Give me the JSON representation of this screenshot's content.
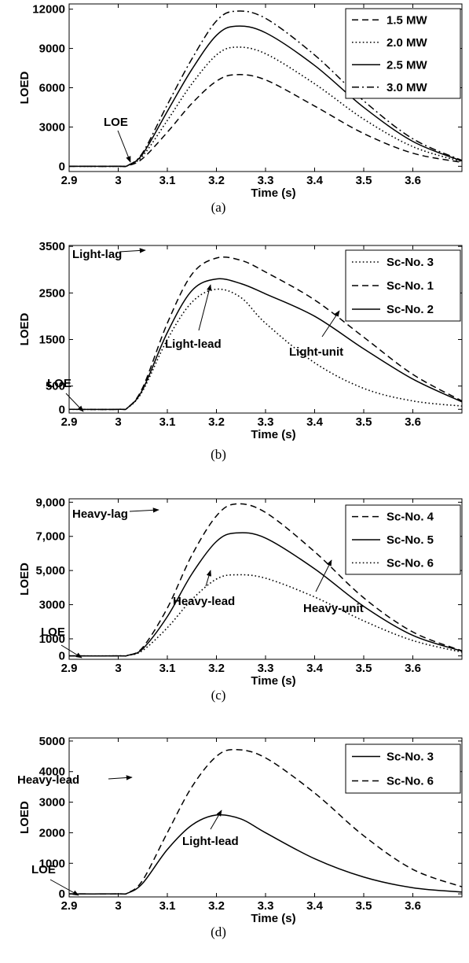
{
  "chart_data": [
    {
      "type": "line",
      "caption": "(a)",
      "xlabel": "Time (s)",
      "ylabel": "LOED",
      "xlim": [
        2.9,
        3.7
      ],
      "ylim": [
        -400,
        12400
      ],
      "xticks": [
        2.9,
        3.0,
        3.1,
        3.2,
        3.3,
        3.4,
        3.5,
        3.6
      ],
      "xtick_labels": [
        "2.9",
        "3",
        "3.1",
        "3.2",
        "3.3",
        "3.4",
        "3.5",
        "3.6"
      ],
      "yticks": [
        0,
        3000,
        6000,
        9000,
        12000
      ],
      "ytick_labels": [
        "0",
        "3000",
        "6000",
        "9000",
        "12000"
      ],
      "legend_position": "top-right",
      "grid": false,
      "series": [
        {
          "name": "1.5 MW",
          "style": "dashed",
          "points": [
            [
              2.9,
              0
            ],
            [
              3.0,
              0
            ],
            [
              3.02,
              50
            ],
            [
              3.05,
              600
            ],
            [
              3.1,
              2600
            ],
            [
              3.15,
              4800
            ],
            [
              3.2,
              6500
            ],
            [
              3.24,
              7000
            ],
            [
              3.3,
              6600
            ],
            [
              3.4,
              4600
            ],
            [
              3.5,
              2500
            ],
            [
              3.6,
              1000
            ],
            [
              3.7,
              300
            ]
          ]
        },
        {
          "name": "2.0 MW",
          "style": "dotted",
          "points": [
            [
              2.9,
              0
            ],
            [
              3.0,
              0
            ],
            [
              3.02,
              60
            ],
            [
              3.05,
              800
            ],
            [
              3.1,
              3500
            ],
            [
              3.15,
              6300
            ],
            [
              3.2,
              8500
            ],
            [
              3.24,
              9100
            ],
            [
              3.3,
              8600
            ],
            [
              3.4,
              6300
            ],
            [
              3.5,
              3600
            ],
            [
              3.6,
              1500
            ],
            [
              3.7,
              350
            ]
          ]
        },
        {
          "name": "2.5 MW",
          "style": "solid",
          "points": [
            [
              2.9,
              0
            ],
            [
              3.0,
              0
            ],
            [
              3.02,
              70
            ],
            [
              3.05,
              950
            ],
            [
              3.1,
              4200
            ],
            [
              3.15,
              7400
            ],
            [
              3.2,
              10000
            ],
            [
              3.24,
              10700
            ],
            [
              3.3,
              10200
            ],
            [
              3.4,
              7700
            ],
            [
              3.5,
              4500
            ],
            [
              3.6,
              1900
            ],
            [
              3.7,
              400
            ]
          ]
        },
        {
          "name": "3.0 MW",
          "style": "dashdot",
          "points": [
            [
              2.9,
              0
            ],
            [
              3.0,
              0
            ],
            [
              3.02,
              80
            ],
            [
              3.05,
              1050
            ],
            [
              3.1,
              4700
            ],
            [
              3.15,
              8200
            ],
            [
              3.2,
              11100
            ],
            [
              3.24,
              11850
            ],
            [
              3.3,
              11300
            ],
            [
              3.4,
              8500
            ],
            [
              3.5,
              5000
            ],
            [
              3.6,
              2100
            ],
            [
              3.7,
              450
            ]
          ]
        }
      ],
      "annotations": [
        {
          "text": "LOE",
          "x": 3.0,
          "y": 0
        }
      ]
    },
    {
      "type": "line",
      "caption": "(b)",
      "xlabel": "Time (s)",
      "ylabel": "LOED",
      "xlim": [
        2.9,
        3.7
      ],
      "ylim": [
        -80,
        3520
      ],
      "xticks": [
        2.9,
        3.0,
        3.1,
        3.2,
        3.3,
        3.4,
        3.5,
        3.6
      ],
      "xtick_labels": [
        "2.9",
        "3",
        "3.1",
        "3.2",
        "3.3",
        "3.4",
        "3.5",
        "3.6"
      ],
      "yticks": [
        0,
        500,
        1500,
        2500,
        3500
      ],
      "ytick_labels": [
        "0",
        "500",
        "1500",
        "2500",
        "3500"
      ],
      "legend_position": "top-right",
      "grid": false,
      "series": [
        {
          "name": "Sc-No. 3",
          "style": "dotted",
          "points": [
            [
              2.9,
              0
            ],
            [
              3.0,
              0
            ],
            [
              3.02,
              40
            ],
            [
              3.05,
              400
            ],
            [
              3.1,
              1500
            ],
            [
              3.15,
              2300
            ],
            [
              3.2,
              2580
            ],
            [
              3.25,
              2400
            ],
            [
              3.3,
              1850
            ],
            [
              3.4,
              1000
            ],
            [
              3.5,
              450
            ],
            [
              3.6,
              180
            ],
            [
              3.7,
              70
            ]
          ]
        },
        {
          "name": "Sc-No. 1",
          "style": "dashed",
          "points": [
            [
              2.9,
              0
            ],
            [
              3.0,
              0
            ],
            [
              3.02,
              45
            ],
            [
              3.05,
              470
            ],
            [
              3.1,
              1850
            ],
            [
              3.15,
              2900
            ],
            [
              3.2,
              3250
            ],
            [
              3.25,
              3200
            ],
            [
              3.3,
              2950
            ],
            [
              3.4,
              2350
            ],
            [
              3.5,
              1550
            ],
            [
              3.6,
              750
            ],
            [
              3.7,
              180
            ]
          ]
        },
        {
          "name": "Sc-No. 2",
          "style": "solid",
          "points": [
            [
              2.9,
              0
            ],
            [
              3.0,
              0
            ],
            [
              3.02,
              42
            ],
            [
              3.05,
              430
            ],
            [
              3.1,
              1650
            ],
            [
              3.15,
              2550
            ],
            [
              3.2,
              2800
            ],
            [
              3.25,
              2700
            ],
            [
              3.3,
              2480
            ],
            [
              3.4,
              2000
            ],
            [
              3.5,
              1300
            ],
            [
              3.6,
              650
            ],
            [
              3.7,
              160
            ]
          ]
        }
      ],
      "annotations": [
        {
          "text": "Light-lag",
          "x": 3.185,
          "y": 3250
        },
        {
          "text": "Light-lead",
          "x": 3.2,
          "y": 2800
        },
        {
          "text": "Light-unit",
          "x": 3.37,
          "y": 2100
        },
        {
          "text": "LOE",
          "x": 3.0,
          "y": 0
        }
      ]
    },
    {
      "type": "line",
      "caption": "(c)",
      "xlabel": "Time (s)",
      "ylabel": "LOED",
      "xlim": [
        2.9,
        3.7
      ],
      "ylim": [
        -200,
        9200
      ],
      "xticks": [
        2.9,
        3.0,
        3.1,
        3.2,
        3.3,
        3.4,
        3.5,
        3.6
      ],
      "xtick_labels": [
        "2.9",
        "3",
        "3.1",
        "3.2",
        "3.3",
        "3.4",
        "3.5",
        "3.6"
      ],
      "yticks": [
        0,
        1000,
        3000,
        5000,
        7000,
        9000
      ],
      "ytick_labels": [
        "0",
        "1000",
        "3000",
        "5,000",
        "7,000",
        "9,000"
      ],
      "legend_position": "top-right",
      "grid": false,
      "series": [
        {
          "name": "Sc-No. 4",
          "style": "dashed",
          "points": [
            [
              2.9,
              0
            ],
            [
              3.0,
              0
            ],
            [
              3.02,
              40
            ],
            [
              3.05,
              500
            ],
            [
              3.1,
              2800
            ],
            [
              3.15,
              5900
            ],
            [
              3.2,
              8200
            ],
            [
              3.24,
              8900
            ],
            [
              3.3,
              8400
            ],
            [
              3.4,
              6100
            ],
            [
              3.5,
              3400
            ],
            [
              3.6,
              1400
            ],
            [
              3.7,
              300
            ]
          ]
        },
        {
          "name": "Sc-No. 5",
          "style": "solid",
          "points": [
            [
              2.9,
              0
            ],
            [
              3.0,
              0
            ],
            [
              3.02,
              35
            ],
            [
              3.05,
              420
            ],
            [
              3.1,
              2300
            ],
            [
              3.15,
              4800
            ],
            [
              3.2,
              6700
            ],
            [
              3.24,
              7200
            ],
            [
              3.3,
              6900
            ],
            [
              3.4,
              5100
            ],
            [
              3.5,
              2900
            ],
            [
              3.6,
              1200
            ],
            [
              3.7,
              280
            ]
          ]
        },
        {
          "name": "Sc-No. 6",
          "style": "dotted",
          "points": [
            [
              2.9,
              0
            ],
            [
              3.0,
              0
            ],
            [
              3.02,
              30
            ],
            [
              3.05,
              320
            ],
            [
              3.1,
              1650
            ],
            [
              3.15,
              3300
            ],
            [
              3.2,
              4500
            ],
            [
              3.24,
              4750
            ],
            [
              3.3,
              4550
            ],
            [
              3.4,
              3450
            ],
            [
              3.5,
              2050
            ],
            [
              3.6,
              900
            ],
            [
              3.7,
              220
            ]
          ]
        }
      ],
      "annotations": [
        {
          "text": "Heavy-lag",
          "x": 3.23,
          "y": 8900
        },
        {
          "text": "Heavy-lead",
          "x": 3.17,
          "y": 4500
        },
        {
          "text": "Heavy-unit",
          "x": 3.38,
          "y": 4900
        },
        {
          "text": "LOE",
          "x": 3.0,
          "y": 0
        }
      ]
    },
    {
      "type": "line",
      "caption": "(d)",
      "xlabel": "Time (s)",
      "ylabel": "LOED",
      "xlim": [
        2.9,
        3.7
      ],
      "ylim": [
        -100,
        5100
      ],
      "xticks": [
        2.9,
        3.0,
        3.1,
        3.2,
        3.3,
        3.4,
        3.5,
        3.6
      ],
      "xtick_labels": [
        "2.9",
        "3",
        "3.1",
        "3.2",
        "3.3",
        "3.4",
        "3.5",
        "3.6"
      ],
      "yticks": [
        0,
        1000,
        2000,
        3000,
        4000,
        5000
      ],
      "ytick_labels": [
        "0",
        "1000",
        "2000",
        "3000",
        "4000",
        "5000"
      ],
      "legend_position": "top-right",
      "grid": false,
      "series": [
        {
          "name": "Sc-No. 3",
          "style": "solid",
          "points": [
            [
              2.9,
              0
            ],
            [
              3.0,
              0
            ],
            [
              3.02,
              30
            ],
            [
              3.05,
              350
            ],
            [
              3.1,
              1450
            ],
            [
              3.15,
              2250
            ],
            [
              3.2,
              2580
            ],
            [
              3.25,
              2450
            ],
            [
              3.3,
              2000
            ],
            [
              3.4,
              1150
            ],
            [
              3.5,
              550
            ],
            [
              3.6,
              200
            ],
            [
              3.7,
              60
            ]
          ]
        },
        {
          "name": "Sc-No. 6",
          "style": "dashed",
          "points": [
            [
              2.9,
              0
            ],
            [
              3.0,
              0
            ],
            [
              3.02,
              35
            ],
            [
              3.05,
              450
            ],
            [
              3.1,
              2000
            ],
            [
              3.15,
              3500
            ],
            [
              3.2,
              4500
            ],
            [
              3.24,
              4720
            ],
            [
              3.3,
              4450
            ],
            [
              3.4,
              3300
            ],
            [
              3.5,
              1900
            ],
            [
              3.6,
              800
            ],
            [
              3.7,
              230
            ]
          ]
        }
      ],
      "annotations": [
        {
          "text": "Heavy-lead",
          "x": 3.2,
          "y": 4600
        },
        {
          "text": "Light-lead",
          "x": 3.22,
          "y": 2580
        },
        {
          "text": "LOE",
          "x": 3.0,
          "y": 0
        }
      ]
    }
  ]
}
